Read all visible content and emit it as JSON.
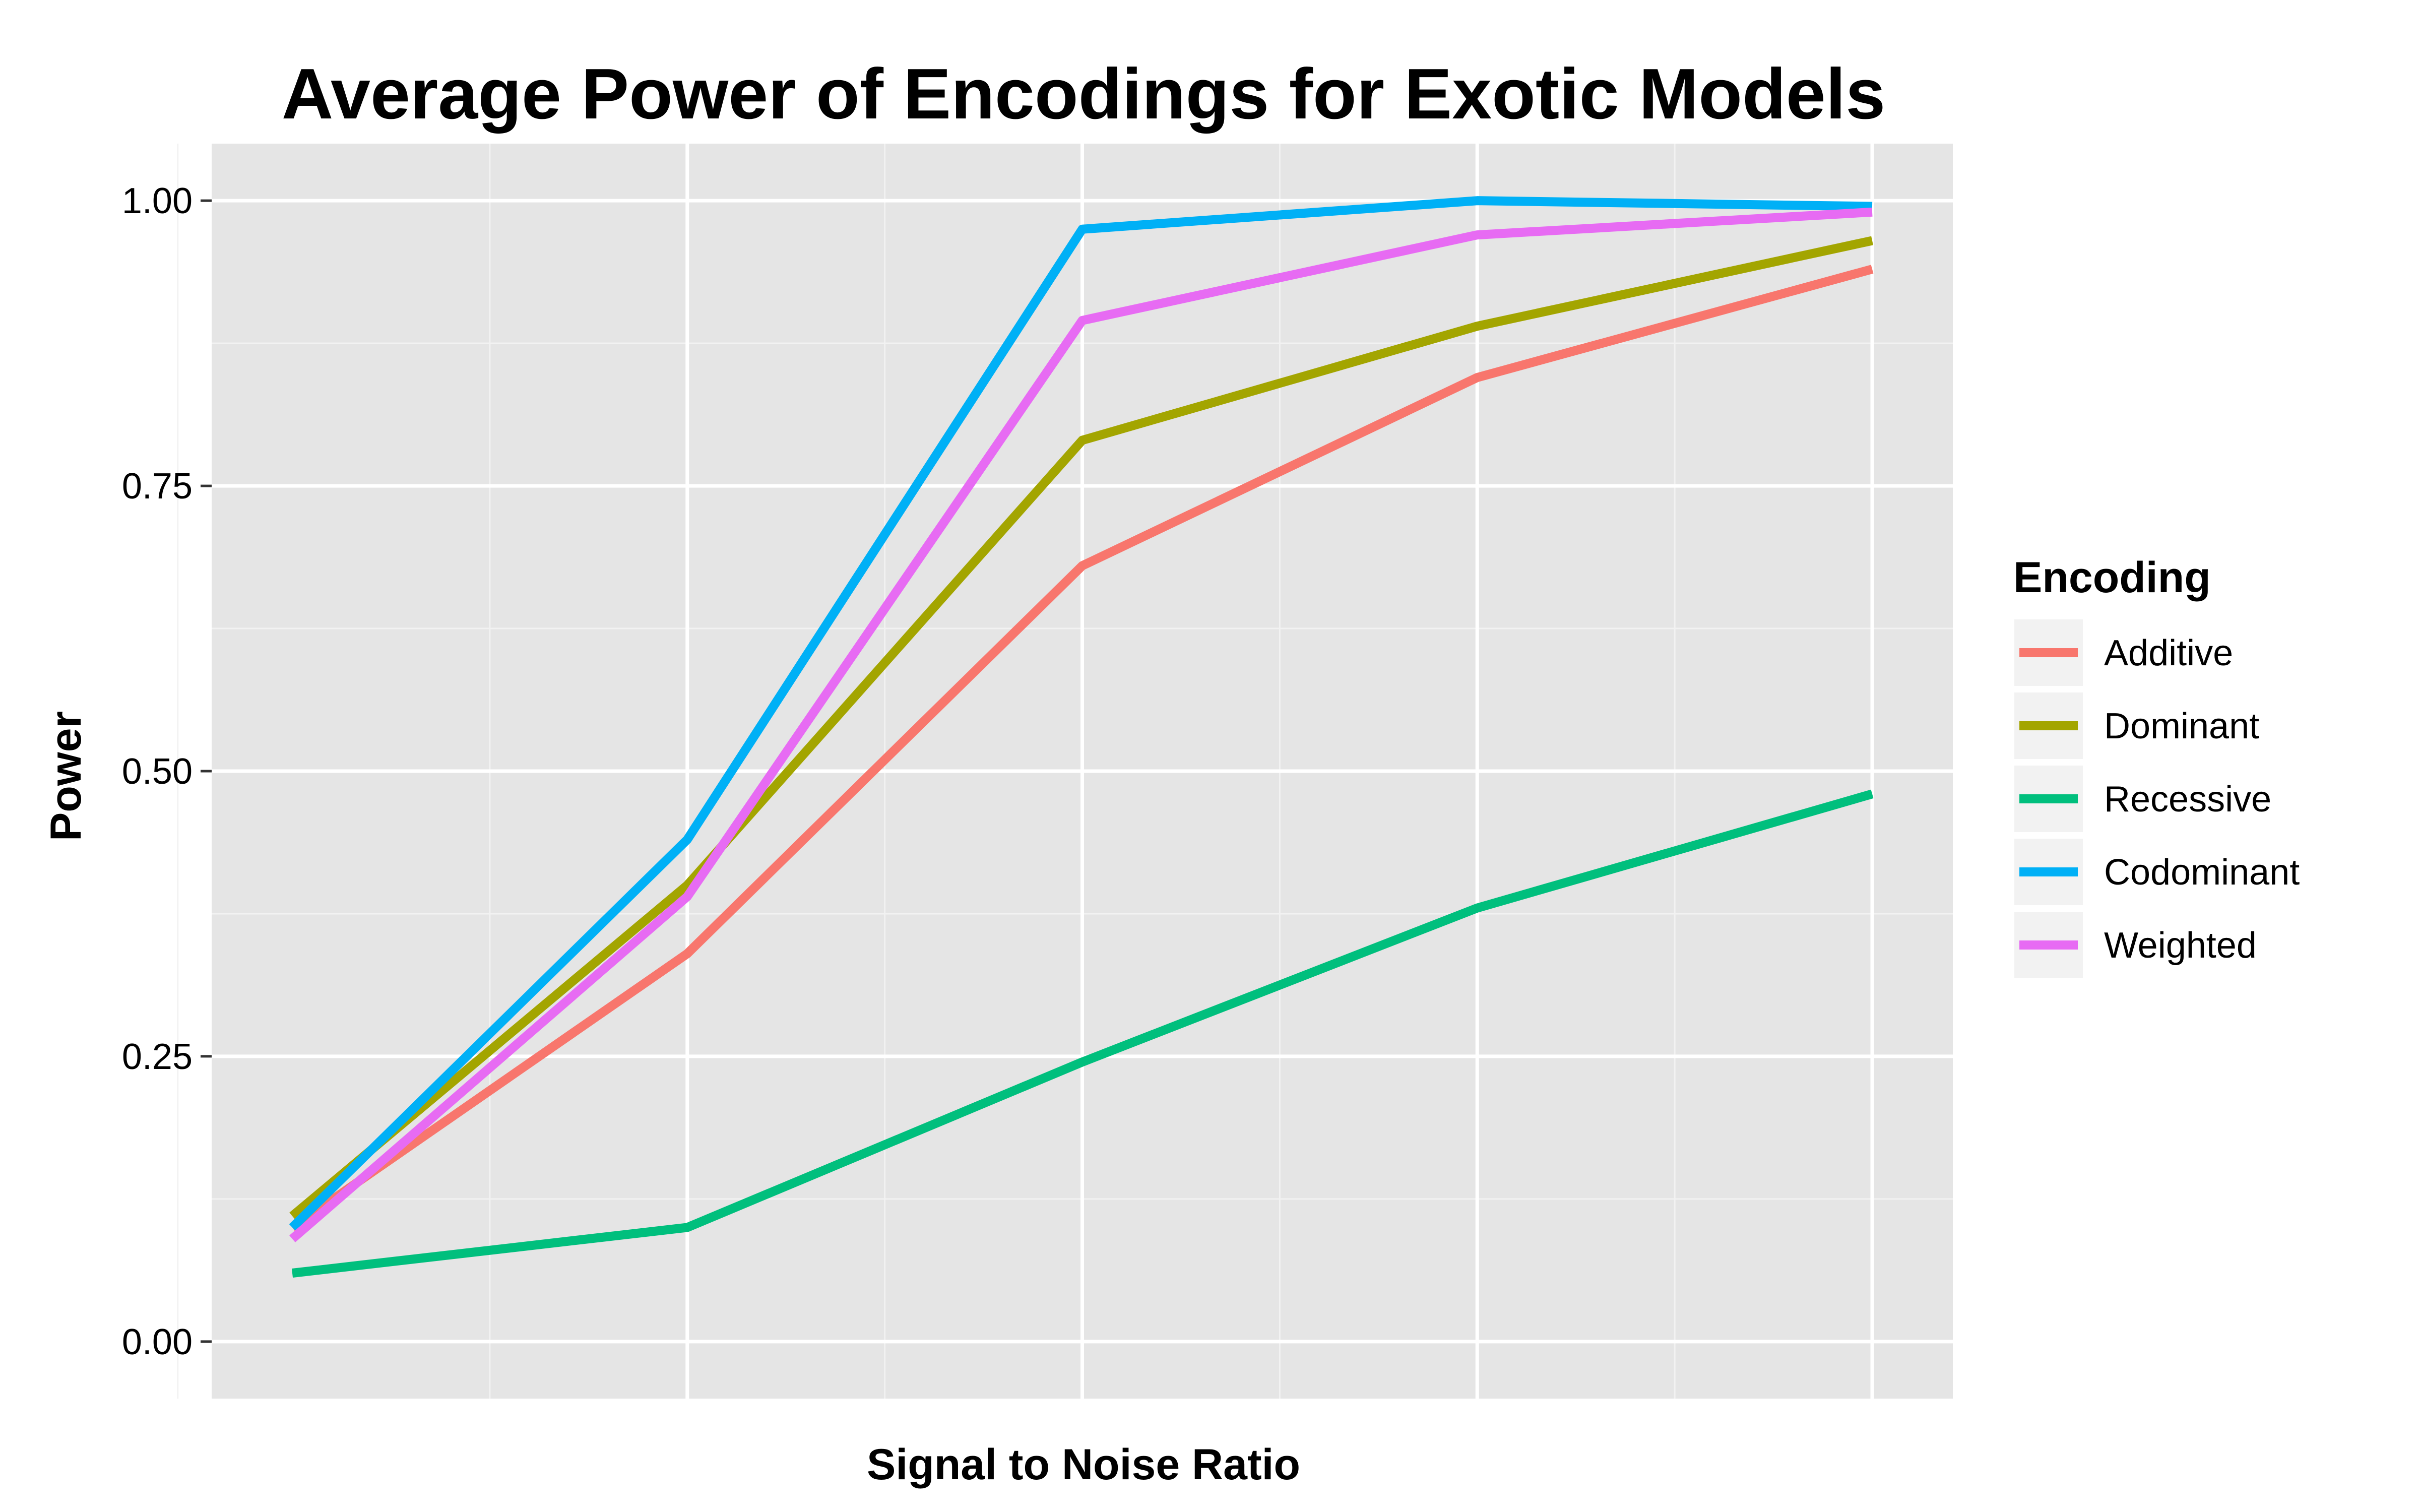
{
  "chart_data": {
    "type": "line",
    "title": "Average Power of Encodings for Exotic Models",
    "xlabel": "Signal to Noise Ratio",
    "ylabel": "Power",
    "x": [
      1,
      2,
      3,
      4,
      5
    ],
    "xlim": [
      0.3,
      4.2
    ],
    "ylim": [
      -0.05,
      1.05
    ],
    "yticks": [
      0.0,
      0.25,
      0.5,
      0.75,
      1.0
    ],
    "ytick_labels": [
      "0.00",
      "0.25",
      "0.50",
      "0.75",
      "1.00"
    ],
    "xticks_labeled": false,
    "grid": true,
    "background": "#E5E5E5",
    "legend": {
      "title": "Encoding",
      "placement": "right"
    },
    "series": [
      {
        "name": "Additive",
        "color": "#F8766D",
        "values": [
          0.1,
          0.34,
          0.68,
          0.845,
          0.94
        ]
      },
      {
        "name": "Dominant",
        "color": "#A3A500",
        "values": [
          0.11,
          0.4,
          0.79,
          0.89,
          0.965
        ]
      },
      {
        "name": "Recessive",
        "color": "#00BF7D",
        "values": [
          0.06,
          0.1,
          0.245,
          0.38,
          0.48
        ]
      },
      {
        "name": "Codominant",
        "color": "#00B0F6",
        "values": [
          0.1,
          0.44,
          0.975,
          1.0,
          0.995
        ]
      },
      {
        "name": "Weighted",
        "color": "#E76BF3",
        "values": [
          0.09,
          0.39,
          0.895,
          0.97,
          0.99
        ]
      }
    ]
  }
}
